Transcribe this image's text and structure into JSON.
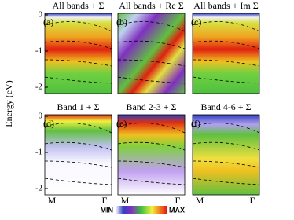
{
  "figure": {
    "ylabel": "Energy (eV)",
    "panels": [
      {
        "label": "(a)",
        "title": "All bands + Σ",
        "title_color": "#1f2fa0"
      },
      {
        "label": "(b)",
        "title": "All bands + Re Σ",
        "title_color": "#000000"
      },
      {
        "label": "(c)",
        "title": "All bands + Im Σ",
        "title_color": "#000000"
      },
      {
        "label": "(d)",
        "title": "Band 1 + Σ",
        "title_color": "#1f2fa0"
      },
      {
        "label": "(e)",
        "title": "Band 2-3 + Σ",
        "title_color": "#d07010"
      },
      {
        "label": "(f)",
        "title": "Band 4-6 + Σ",
        "title_color": "#c02020"
      }
    ],
    "yticks": [
      0,
      -1,
      -2
    ],
    "xticks": [
      "M",
      "Γ"
    ],
    "colorbar": {
      "min_label": "MIN",
      "max_label": "MAX"
    }
  }
}
